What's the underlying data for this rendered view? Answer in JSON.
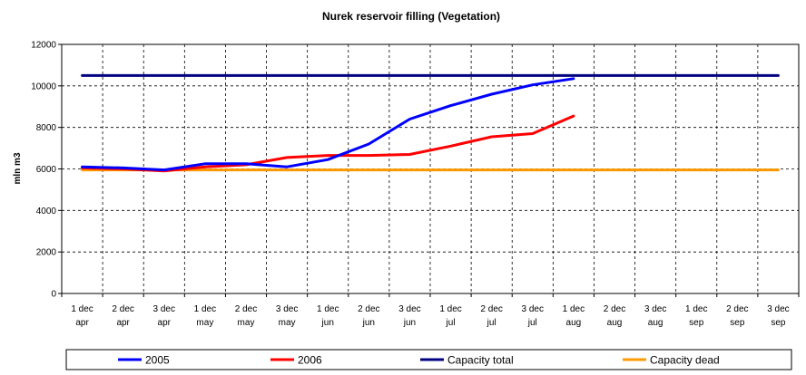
{
  "chart_data": {
    "type": "line",
    "title": "Nurek reservoir filling (Vegetation)",
    "xlabel": "",
    "ylabel": "mln m3",
    "ylim": [
      0,
      12000
    ],
    "yticks": [
      0,
      2000,
      4000,
      6000,
      8000,
      10000,
      12000
    ],
    "grid": true,
    "legend_position": "bottom",
    "categories": [
      {
        "line1": "1 dec",
        "line2": "apr"
      },
      {
        "line1": "2 dec",
        "line2": "apr"
      },
      {
        "line1": "3 dec",
        "line2": "apr"
      },
      {
        "line1": "1 dec",
        "line2": "may"
      },
      {
        "line1": "2 dec",
        "line2": "may"
      },
      {
        "line1": "3 dec",
        "line2": "may"
      },
      {
        "line1": "1 dec",
        "line2": "jun"
      },
      {
        "line1": "2 dec",
        "line2": "jun"
      },
      {
        "line1": "3 dec",
        "line2": "jun"
      },
      {
        "line1": "1 dec",
        "line2": "jul"
      },
      {
        "line1": "2 dec",
        "line2": "jul"
      },
      {
        "line1": "3 dec",
        "line2": "jul"
      },
      {
        "line1": "1 dec",
        "line2": "aug"
      },
      {
        "line1": "2 dec",
        "line2": "aug"
      },
      {
        "line1": "3 dec",
        "line2": "aug"
      },
      {
        "line1": "1 dec",
        "line2": "sep"
      },
      {
        "line1": "2 dec",
        "line2": "sep"
      },
      {
        "line1": "3 dec",
        "line2": "sep"
      }
    ],
    "series": [
      {
        "name": "2005",
        "color": "#0000FF",
        "values": [
          6100,
          6050,
          5950,
          6250,
          6250,
          6100,
          6450,
          7200,
          8400,
          9050,
          9600,
          10050,
          10350,
          null,
          null,
          null,
          null,
          null
        ]
      },
      {
        "name": "2006",
        "color": "#FF0000",
        "values": [
          6050,
          6000,
          5900,
          6100,
          6200,
          6550,
          6650,
          6650,
          6700,
          7100,
          7550,
          7700,
          8550,
          null,
          null,
          null,
          null,
          null
        ]
      },
      {
        "name": "Capacity total",
        "color": "#000080",
        "values": [
          10500,
          10500,
          10500,
          10500,
          10500,
          10500,
          10500,
          10500,
          10500,
          10500,
          10500,
          10500,
          10500,
          10500,
          10500,
          10500,
          10500,
          10500
        ]
      },
      {
        "name": "Capacity dead",
        "color": "#FF9900",
        "values": [
          5950,
          5950,
          5950,
          5950,
          5950,
          5950,
          5950,
          5950,
          5950,
          5950,
          5950,
          5950,
          5950,
          5950,
          5950,
          5950,
          5950,
          5950
        ]
      }
    ]
  }
}
